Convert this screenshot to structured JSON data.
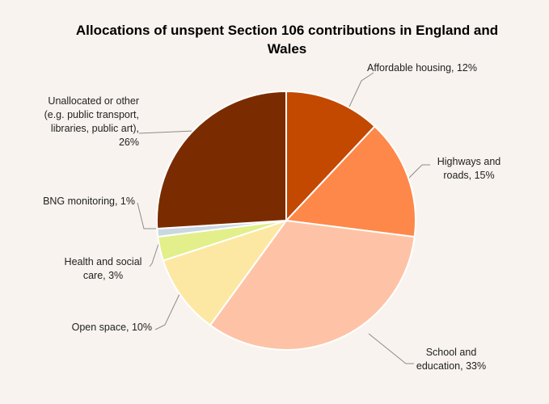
{
  "chart_data": {
    "type": "pie",
    "title": "Allocations of unspent Section 106 contributions in England and Wales",
    "slices": [
      {
        "label": "Affordable housing, 12%",
        "value": 12,
        "color": "#c34800"
      },
      {
        "label": "Highways and roads, 15%",
        "value": 15,
        "color": "#fe884a"
      },
      {
        "label": "School and education, 33%",
        "value": 33,
        "color": "#fec3a6"
      },
      {
        "label": "Open space, 10%",
        "value": 10,
        "color": "#fde8a3"
      },
      {
        "label": "Health and social care, 3%",
        "value": 3,
        "color": "#e2ef8a"
      },
      {
        "label": "BNG monitoring, 1%",
        "value": 1,
        "color": "#c9d7e0"
      },
      {
        "label": "Unallocated or other (e.g. public transport, libraries, public art), 26%",
        "value": 26,
        "color": "#7a2c00"
      }
    ]
  }
}
